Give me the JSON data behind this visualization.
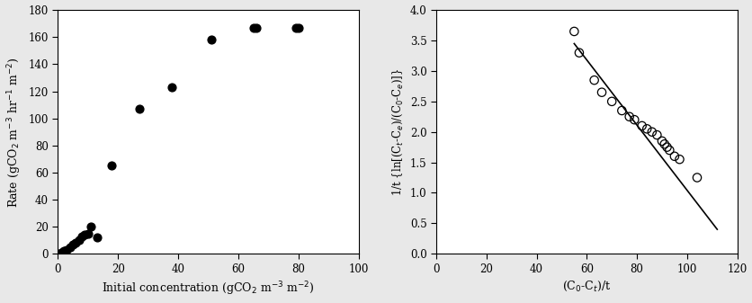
{
  "plot1": {
    "x": [
      1,
      2,
      3,
      4,
      5,
      6,
      7,
      8,
      9,
      10,
      11,
      13,
      18,
      27,
      38,
      51,
      65,
      66,
      79,
      80
    ],
    "y": [
      1,
      2,
      3,
      5,
      7,
      8,
      10,
      13,
      14,
      15,
      20,
      12,
      65,
      107,
      123,
      158,
      167,
      167,
      167,
      167
    ],
    "xlabel": "Initial concentration (gCO$_2$ m$^{-3}$ m$^{-2}$)",
    "ylabel": "Rate (gCO$_2$ m$^{-3}$ hr$^{-1}$ m$^{-2}$)",
    "xlim": [
      0,
      100
    ],
    "ylim": [
      0,
      180
    ],
    "xticks": [
      0,
      20,
      40,
      60,
      80,
      100
    ],
    "yticks": [
      0,
      20,
      40,
      60,
      80,
      100,
      120,
      140,
      160,
      180
    ]
  },
  "plot2": {
    "x": [
      55,
      57,
      63,
      66,
      70,
      74,
      77,
      79,
      82,
      84,
      86,
      88,
      90,
      91,
      92,
      93,
      95,
      97,
      104
    ],
    "y": [
      3.65,
      3.3,
      2.85,
      2.65,
      2.5,
      2.35,
      2.25,
      2.2,
      2.1,
      2.05,
      2.0,
      1.95,
      1.85,
      1.8,
      1.75,
      1.7,
      1.6,
      1.55,
      1.25
    ],
    "line_x": [
      55,
      112
    ],
    "line_y": [
      3.45,
      0.4
    ],
    "xlabel": "(C$_0$-C$_t$)/t",
    "ylabel": "1/t {ln[(C$_t$-C$_e$)/(C$_0$-C$_e$)]}",
    "xlim": [
      0,
      120
    ],
    "ylim": [
      0,
      4
    ],
    "xticks": [
      0,
      20,
      40,
      60,
      80,
      100,
      120
    ],
    "yticks": [
      0,
      0.5,
      1.0,
      1.5,
      2.0,
      2.5,
      3.0,
      3.5,
      4.0
    ]
  },
  "fig_facecolor": "#e8e8e8",
  "font_family": "serif"
}
